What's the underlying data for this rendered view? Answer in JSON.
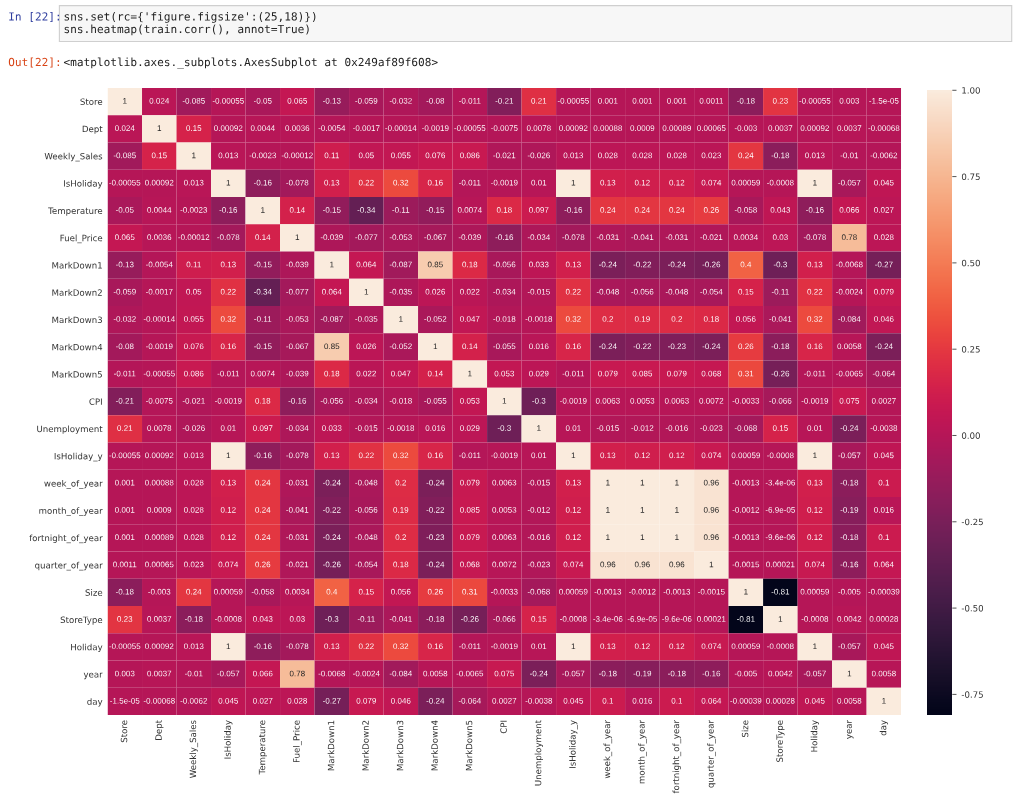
{
  "chart_data": {
    "type": "heatmap",
    "categories": [
      "Store",
      "Dept",
      "Weekly_Sales",
      "IsHoliday",
      "Temperature",
      "Fuel_Price",
      "MarkDown1",
      "MarkDown2",
      "MarkDown3",
      "MarkDown4",
      "MarkDown5",
      "CPI",
      "Unemployment",
      "IsHoliday_y",
      "week_of_year",
      "month_of_year",
      "fortnight_of_year",
      "quarter_of_year",
      "Size",
      "StoreType",
      "Holiday",
      "year",
      "day"
    ],
    "y_categories": [
      "Store",
      "Dept",
      "Weekly_Sales",
      "IsHoliday",
      "Temperature",
      "Fuel_Price",
      "MarkDown1",
      "MarkDown2",
      "MarkDown3",
      "MarkDown4",
      "MarkDown5",
      "CPI",
      "Unemployment",
      "IsHoliday_y",
      "week_of_year",
      "month_of_year",
      "fortnight_of_year",
      "quarter_of_year",
      "Size",
      "StoreType",
      "Holiday",
      "year",
      "day"
    ],
    "cells": [
      [
        1,
        0.024,
        -0.085,
        -0.00055,
        -0.05,
        0.065,
        -0.13,
        -0.059,
        -0.032,
        -0.08,
        -0.011,
        -0.21,
        0.21,
        -0.00055,
        0.001,
        0.001,
        0.001,
        0.0011,
        -0.18,
        0.23,
        -0.00055,
        0.003,
        -1.5e-05
      ],
      [
        0.024,
        1,
        0.15,
        0.00092,
        0.0044,
        0.0036,
        -0.0054,
        -0.0017,
        -0.00014,
        -0.0019,
        -0.00055,
        -0.0075,
        0.0078,
        0.00092,
        0.00088,
        0.0009,
        0.00089,
        0.00065,
        -0.003,
        0.0037,
        0.00092,
        0.0037,
        -0.00068
      ],
      [
        -0.085,
        0.15,
        1,
        0.013,
        -0.0023,
        -0.00012,
        0.11,
        0.05,
        0.055,
        0.076,
        0.086,
        -0.021,
        -0.026,
        0.013,
        0.028,
        0.028,
        0.028,
        0.023,
        0.24,
        -0.18,
        0.013,
        -0.01,
        -0.0062
      ],
      [
        -0.00055,
        0.00092,
        0.013,
        1,
        -0.16,
        -0.078,
        0.13,
        0.22,
        0.32,
        0.16,
        -0.011,
        -0.0019,
        0.01,
        1,
        0.13,
        0.12,
        0.12,
        0.074,
        0.00059,
        -0.0008,
        1,
        -0.057,
        0.045
      ],
      [
        -0.05,
        0.0044,
        -0.0023,
        -0.16,
        1,
        0.14,
        -0.15,
        -0.34,
        -0.11,
        -0.15,
        0.0074,
        0.18,
        0.097,
        -0.16,
        0.24,
        0.24,
        0.24,
        0.26,
        -0.058,
        0.043,
        -0.16,
        0.066,
        0.027
      ],
      [
        0.065,
        0.0036,
        -0.00012,
        -0.078,
        0.14,
        1,
        -0.039,
        -0.077,
        -0.053,
        -0.067,
        -0.039,
        -0.16,
        -0.034,
        -0.078,
        -0.031,
        -0.041,
        -0.031,
        -0.021,
        0.0034,
        0.03,
        -0.078,
        0.78,
        0.028
      ],
      [
        -0.13,
        -0.0054,
        0.11,
        0.13,
        -0.15,
        -0.039,
        1,
        0.064,
        -0.087,
        0.85,
        0.18,
        -0.056,
        0.033,
        0.13,
        -0.24,
        -0.22,
        -0.24,
        -0.26,
        0.4,
        -0.3,
        0.13,
        -0.0068,
        -0.27
      ],
      [
        -0.059,
        -0.0017,
        0.05,
        0.22,
        -0.34,
        -0.077,
        0.064,
        1,
        -0.035,
        0.026,
        0.022,
        -0.034,
        -0.015,
        0.22,
        -0.048,
        -0.056,
        -0.048,
        -0.054,
        0.15,
        -0.11,
        0.22,
        -0.0024,
        0.079
      ],
      [
        -0.032,
        -0.00014,
        0.055,
        0.32,
        -0.11,
        -0.053,
        -0.087,
        -0.035,
        1,
        -0.052,
        0.047,
        -0.018,
        -0.0018,
        0.32,
        0.2,
        0.19,
        0.2,
        0.18,
        0.056,
        -0.041,
        0.32,
        -0.084,
        0.046
      ],
      [
        -0.08,
        -0.0019,
        0.076,
        0.16,
        -0.15,
        -0.067,
        0.85,
        0.026,
        -0.052,
        1,
        0.14,
        -0.055,
        0.016,
        0.16,
        -0.24,
        -0.22,
        -0.23,
        -0.24,
        0.26,
        -0.18,
        0.16,
        0.0058,
        -0.24
      ],
      [
        -0.011,
        -0.00055,
        0.086,
        -0.011,
        0.0074,
        -0.039,
        0.18,
        0.022,
        0.047,
        0.14,
        1,
        0.053,
        0.029,
        -0.011,
        0.079,
        0.085,
        0.079,
        0.068,
        0.31,
        -0.26,
        -0.011,
        -0.0065,
        -0.064
      ],
      [
        -0.21,
        -0.0075,
        -0.021,
        -0.0019,
        0.18,
        -0.16,
        -0.056,
        -0.034,
        -0.018,
        -0.055,
        0.053,
        1,
        -0.3,
        -0.0019,
        0.0063,
        0.0053,
        0.0063,
        0.0072,
        -0.0033,
        -0.066,
        -0.0019,
        0.075,
        0.0027
      ],
      [
        0.21,
        0.0078,
        -0.026,
        0.01,
        0.097,
        -0.034,
        0.033,
        -0.015,
        -0.0018,
        0.016,
        0.029,
        -0.3,
        1,
        0.01,
        -0.015,
        -0.012,
        -0.016,
        -0.023,
        -0.068,
        0.15,
        0.01,
        -0.24,
        -0.0038
      ],
      [
        -0.00055,
        0.00092,
        0.013,
        1,
        -0.16,
        -0.078,
        0.13,
        0.22,
        0.32,
        0.16,
        -0.011,
        -0.0019,
        0.01,
        1,
        0.13,
        0.12,
        0.12,
        0.074,
        0.00059,
        -0.0008,
        1,
        -0.057,
        0.045
      ],
      [
        0.001,
        0.00088,
        0.028,
        0.13,
        0.24,
        -0.031,
        -0.24,
        -0.048,
        0.2,
        -0.24,
        0.079,
        0.0063,
        -0.015,
        0.13,
        1,
        1,
        1,
        0.96,
        -0.0013,
        -3.4e-06,
        0.13,
        -0.18,
        0.1
      ],
      [
        0.001,
        0.0009,
        0.028,
        0.12,
        0.24,
        -0.041,
        -0.22,
        -0.056,
        0.19,
        -0.22,
        0.085,
        0.0053,
        -0.012,
        0.12,
        1,
        1,
        1,
        0.96,
        -0.0012,
        -6.9e-05,
        0.12,
        -0.19,
        0.016
      ],
      [
        0.001,
        0.00089,
        0.028,
        0.12,
        0.24,
        -0.031,
        -0.24,
        -0.048,
        0.2,
        -0.23,
        0.079,
        0.0063,
        -0.016,
        0.12,
        1,
        1,
        1,
        0.96,
        -0.0013,
        -9.6e-06,
        0.12,
        -0.18,
        0.1
      ],
      [
        0.0011,
        0.00065,
        0.023,
        0.074,
        0.26,
        -0.021,
        -0.26,
        -0.054,
        0.18,
        -0.24,
        0.068,
        0.0072,
        -0.023,
        0.074,
        0.96,
        0.96,
        0.96,
        1,
        -0.0015,
        0.00021,
        0.074,
        -0.16,
        0.064
      ],
      [
        -0.18,
        -0.003,
        0.24,
        0.00059,
        -0.058,
        0.0034,
        0.4,
        0.15,
        0.056,
        0.26,
        0.31,
        -0.0033,
        -0.068,
        0.00059,
        -0.0013,
        -0.0012,
        -0.0013,
        -0.0015,
        1,
        -0.81,
        0.00059,
        -0.005,
        -0.00039
      ],
      [
        0.23,
        0.0037,
        -0.18,
        -0.0008,
        0.043,
        0.03,
        -0.3,
        -0.11,
        -0.041,
        -0.18,
        -0.26,
        -0.066,
        0.15,
        -0.0008,
        -3.4e-06,
        -6.9e-05,
        -9.6e-06,
        0.00021,
        -0.81,
        1,
        -0.0008,
        0.0042,
        0.00028
      ],
      [
        -0.00055,
        0.00092,
        0.013,
        1,
        -0.16,
        -0.078,
        0.13,
        0.22,
        0.32,
        0.16,
        -0.011,
        -0.0019,
        0.01,
        1,
        0.13,
        0.12,
        0.12,
        0.074,
        0.00059,
        -0.0008,
        1,
        -0.057,
        0.045
      ],
      [
        0.003,
        0.0037,
        -0.01,
        -0.057,
        0.066,
        0.78,
        -0.0068,
        -0.0024,
        -0.084,
        0.0058,
        -0.0065,
        0.075,
        -0.24,
        -0.057,
        -0.18,
        -0.19,
        -0.18,
        -0.16,
        -0.005,
        0.0042,
        -0.057,
        1,
        0.0058
      ],
      [
        -1.5e-05,
        -0.00068,
        -0.0062,
        0.045,
        0.027,
        0.028,
        -0.27,
        0.079,
        0.046,
        -0.24,
        -0.064,
        0.0027,
        -0.0038,
        0.045,
        0.1,
        0.016,
        0.1,
        0.064,
        -0.00039,
        0.00028,
        0.045,
        0.0058,
        1
      ]
    ],
    "data_labels": true,
    "clim": [
      -0.81,
      1
    ],
    "cticks": [
      {
        "value": -0.75,
        "label": "-0.75"
      },
      {
        "value": -0.5,
        "label": "-0.50"
      },
      {
        "value": -0.25,
        "label": "-0.25"
      },
      {
        "value": 0,
        "label": "0.00"
      },
      {
        "value": 0.25,
        "label": "0.25"
      },
      {
        "value": 0.5,
        "label": "0.50"
      },
      {
        "value": 0.75,
        "label": "0.75"
      },
      {
        "value": 1,
        "label": "1.00"
      }
    ],
    "annotations": [
      "In [22]:",
      "sns.set(rc={'figure.figsize':(25,18)})\nsns.heatmap(train.corr(), annot=True)",
      "Out[22]:",
      "<matplotlib.axes._subplots.AxesSubplot at 0x249af89f608>"
    ]
  }
}
